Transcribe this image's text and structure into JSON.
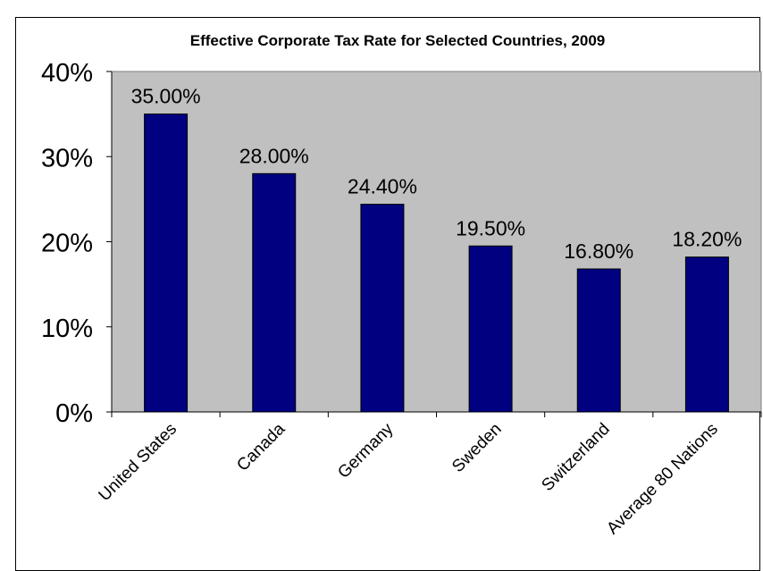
{
  "chart_data": {
    "type": "bar",
    "title": "Effective Corporate Tax Rate for Selected Countries, 2009",
    "categories": [
      "United States",
      "Canada",
      "Germany",
      "Sweden",
      "Switzerland",
      "Average 80 Nations"
    ],
    "values": [
      35.0,
      28.0,
      24.4,
      19.5,
      16.8,
      18.2
    ],
    "data_labels": [
      "35.00%",
      "28.00%",
      "24.40%",
      "19.50%",
      "16.80%",
      "18.20%"
    ],
    "ylim": [
      0,
      40
    ],
    "yticks": [
      0,
      10,
      20,
      30,
      40
    ],
    "ytick_labels": [
      "0%",
      "10%",
      "20%",
      "30%",
      "40%"
    ],
    "xlabel": "",
    "ylabel": "",
    "grid": false,
    "legend": "none",
    "colors": {
      "bar_fill": "#000080",
      "bar_stroke": "#000000",
      "plot_background": "#c0c0c0",
      "text": "#000000"
    }
  }
}
